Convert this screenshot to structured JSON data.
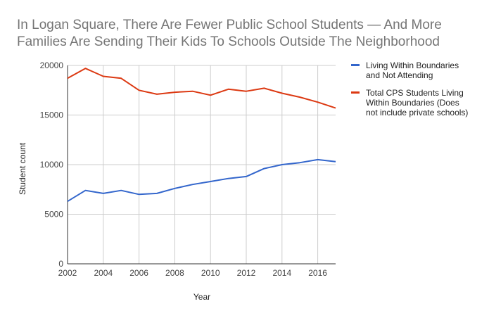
{
  "chart_data": {
    "type": "line",
    "title_lines": [
      "In Logan Square, There Are Fewer Public School Students — And More",
      "Families Are Sending Their Kids To Schools Outside The Neighborhood"
    ],
    "xlabel": "Year",
    "ylabel": "Student count",
    "xlim": [
      2002,
      2017
    ],
    "ylim": [
      0,
      20000
    ],
    "x_ticks": [
      2002,
      2004,
      2006,
      2008,
      2010,
      2012,
      2014,
      2016
    ],
    "y_ticks": [
      0,
      5000,
      10000,
      15000,
      20000
    ],
    "grid": true,
    "legend_position": "right",
    "x": [
      2002,
      2003,
      2004,
      2005,
      2006,
      2007,
      2008,
      2009,
      2010,
      2011,
      2012,
      2013,
      2014,
      2015,
      2016,
      2017
    ],
    "series": [
      {
        "name_lines": [
          "Living Within Boundaries",
          "and Not Attending"
        ],
        "color": "#3366cc",
        "values": [
          6300,
          7400,
          7100,
          7400,
          7000,
          7100,
          7600,
          8000,
          8300,
          8600,
          8800,
          9600,
          10000,
          10200,
          10500,
          10300
        ]
      },
      {
        "name_lines": [
          "Total CPS Students Living",
          "Within Boundaries (Does",
          "not include private schools)"
        ],
        "color": "#dc3912",
        "values": [
          18700,
          19700,
          18900,
          18700,
          17500,
          17100,
          17300,
          17400,
          17000,
          17600,
          17400,
          17700,
          17200,
          16800,
          16300,
          15700
        ]
      }
    ]
  }
}
